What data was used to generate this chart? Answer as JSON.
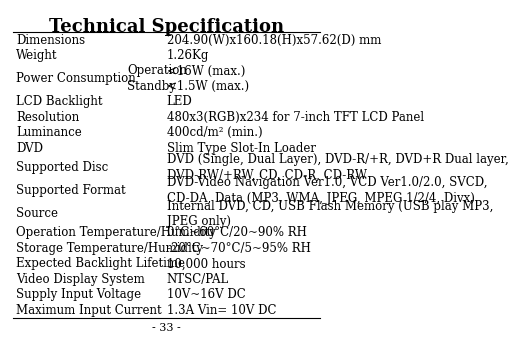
{
  "title": "Technical Specification",
  "page_number": "- 33 -",
  "background_color": "#ffffff",
  "text_color": "#000000",
  "title_fontsize": 13,
  "body_fontsize": 8.5,
  "rows": [
    {
      "label": "Dimensions",
      "sublabel": "",
      "value": "204.90(W)x160.18(H)x57.62(D) mm",
      "is_sub": false
    },
    {
      "label": "Weight",
      "sublabel": "",
      "value": "1.26Kg",
      "is_sub": false
    },
    {
      "label": "Power Consumption",
      "sublabel": "Operation",
      "value": "<16W (max.)",
      "is_sub": false
    },
    {
      "label": "",
      "sublabel": "Standby",
      "value": "<1.5W (max.)",
      "is_sub": true
    },
    {
      "label": "LCD Backlight",
      "sublabel": "",
      "value": "LED",
      "is_sub": false
    },
    {
      "label": "Resolution",
      "sublabel": "",
      "value": "480x3(RGB)x234 for 7-inch TFT LCD Panel",
      "is_sub": false
    },
    {
      "label": "Luminance",
      "sublabel": "",
      "value": "400cd/m² (min.)",
      "is_sub": false
    },
    {
      "label": "DVD",
      "sublabel": "",
      "value": "Slim Type Slot-In Loader",
      "is_sub": false
    },
    {
      "label": "Supported Disc",
      "sublabel": "",
      "value": "DVD (Single, Dual Layer), DVD-R/+R, DVD+R Dual layer,\nDVD-RW/+RW, CD, CD-R, CD-RW",
      "is_sub": false
    },
    {
      "label": "Supported Format",
      "sublabel": "",
      "value": "DVD-Video Navigation Ver1.0, VCD Ver1.0/2.0, SVCD,\nCD-DA, Data (MP3, WMA, JPEG, MPEG 1/2/4, Divx)",
      "is_sub": false
    },
    {
      "label": "Source",
      "sublabel": "",
      "value": "Internal DVD, CD, USB Flash Memory (USB play MP3,\nJPEG only)",
      "is_sub": false
    },
    {
      "label": "Operation Temperature/Humidity",
      "sublabel": "",
      "value": "0°C~60°C/20~90% RH",
      "is_sub": false
    },
    {
      "label": "Storage Temperature/Humidity",
      "sublabel": "",
      "value": "-20°C~70°C/5~95% RH",
      "is_sub": false
    },
    {
      "label": "Expected Backlight Lifetime",
      "sublabel": "",
      "value": "10,000 hours",
      "is_sub": false
    },
    {
      "label": "Video Display System",
      "sublabel": "",
      "value": "NTSC/PAL",
      "is_sub": false
    },
    {
      "label": "Supply Input Voltage",
      "sublabel": "",
      "value": "10V~16V DC",
      "is_sub": false
    },
    {
      "label": "Maximum Input Current",
      "sublabel": "",
      "value": "1.3A Vin= 10V DC",
      "is_sub": false
    }
  ]
}
